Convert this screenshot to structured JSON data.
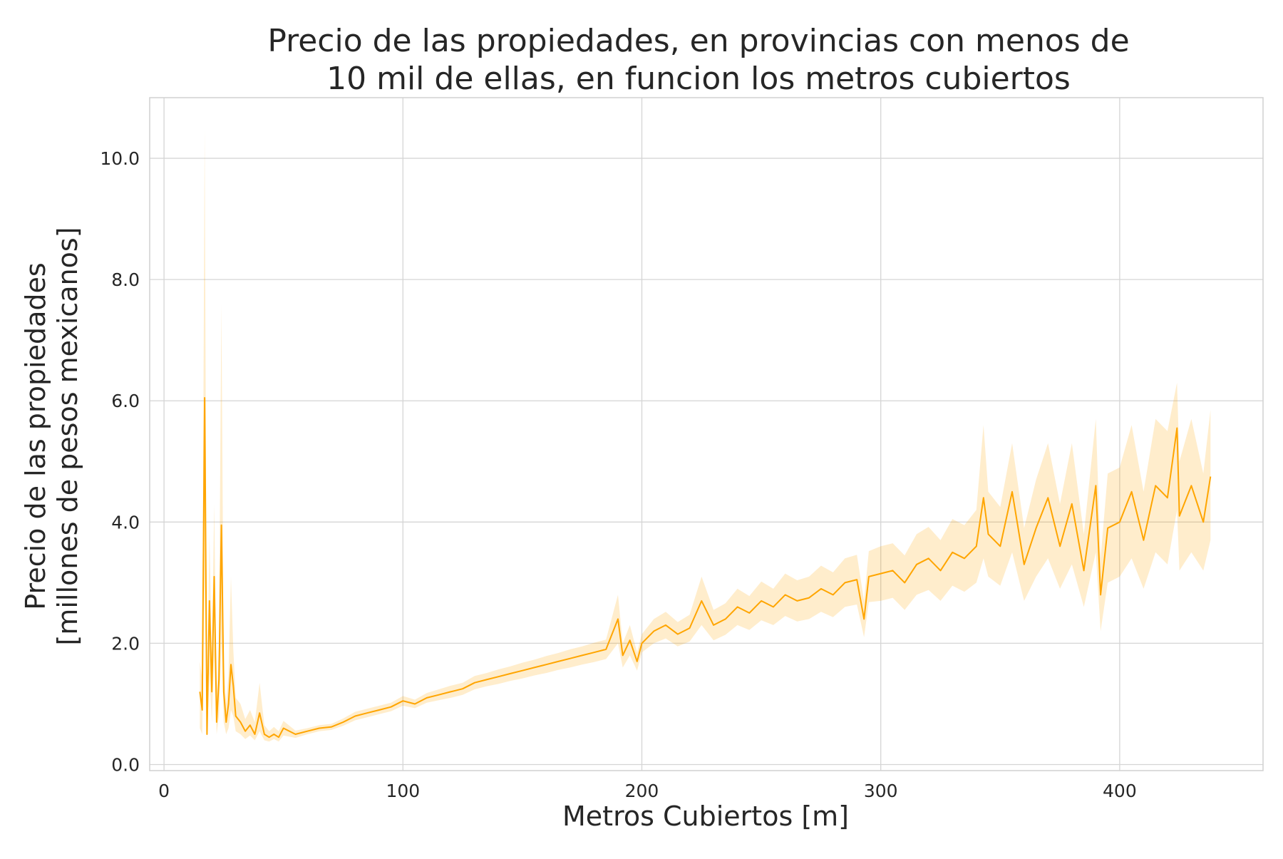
{
  "chart_data": {
    "type": "line",
    "title_lines": [
      "Precio de las propiedades, en provincias con menos de",
      "10 mil de ellas, en funcion los metros cubiertos"
    ],
    "xlabel": "Metros Cubiertos [m]",
    "ylabel_lines": [
      "Precio de las propiedades",
      "[millones de pesos mexicanos]"
    ],
    "xlim": [
      -6,
      460
    ],
    "ylim": [
      -0.1,
      11.0
    ],
    "x_ticks": [
      0,
      100,
      200,
      300,
      400
    ],
    "x_tick_labels": [
      "0",
      "100",
      "200",
      "300",
      "400"
    ],
    "y_ticks": [
      0,
      2,
      4,
      6,
      8,
      10
    ],
    "y_tick_labels": [
      "0.0",
      "2.0",
      "4.0",
      "6.0",
      "8.0",
      "10.0"
    ],
    "grid": true,
    "legend": "none",
    "colors": {
      "line": "#ffa500",
      "band": "#ffa500",
      "grid": "#d5d5d5",
      "frame": "#d0d0d0"
    },
    "series": [
      {
        "x": [
          15,
          16,
          17,
          18,
          19,
          20,
          21,
          22,
          23,
          24,
          25,
          26,
          27,
          28,
          29,
          30,
          32,
          34,
          36,
          38,
          40,
          42,
          44,
          46,
          48,
          50,
          55,
          60,
          65,
          70,
          75,
          80,
          85,
          90,
          95,
          100,
          105,
          110,
          115,
          120,
          125,
          130,
          135,
          140,
          145,
          150,
          155,
          160,
          165,
          170,
          175,
          180,
          185,
          190,
          192,
          195,
          198,
          200,
          205,
          210,
          215,
          220,
          225,
          230,
          235,
          240,
          245,
          250,
          255,
          260,
          265,
          270,
          275,
          280,
          285,
          290,
          293,
          295,
          300,
          305,
          310,
          315,
          320,
          325,
          330,
          335,
          340,
          343,
          345,
          350,
          355,
          360,
          365,
          370,
          375,
          380,
          385,
          390,
          392,
          395,
          400,
          405,
          410,
          415,
          420,
          424,
          425,
          430,
          435,
          438
        ],
        "y": [
          1.2,
          0.9,
          6.05,
          0.5,
          2.7,
          1.2,
          3.1,
          0.7,
          1.4,
          3.95,
          1.2,
          0.7,
          1.0,
          1.65,
          1.3,
          0.8,
          0.7,
          0.55,
          0.65,
          0.5,
          0.85,
          0.5,
          0.45,
          0.5,
          0.45,
          0.6,
          0.5,
          0.55,
          0.6,
          0.62,
          0.7,
          0.8,
          0.85,
          0.9,
          0.95,
          1.05,
          1.0,
          1.1,
          1.15,
          1.2,
          1.25,
          1.35,
          1.4,
          1.45,
          1.5,
          1.55,
          1.6,
          1.65,
          1.7,
          1.75,
          1.8,
          1.85,
          1.9,
          2.4,
          1.8,
          2.05,
          1.7,
          2.0,
          2.2,
          2.3,
          2.15,
          2.25,
          2.7,
          2.3,
          2.4,
          2.6,
          2.5,
          2.7,
          2.6,
          2.8,
          2.7,
          2.75,
          2.9,
          2.8,
          3.0,
          3.05,
          2.4,
          3.1,
          3.15,
          3.2,
          3.0,
          3.3,
          3.4,
          3.2,
          3.5,
          3.4,
          3.6,
          4.4,
          3.8,
          3.6,
          4.5,
          3.3,
          3.9,
          4.4,
          3.6,
          4.3,
          3.2,
          4.6,
          2.8,
          3.9,
          4.0,
          4.5,
          3.7,
          4.6,
          4.4,
          5.55,
          4.1,
          4.6,
          4.0,
          4.75
        ],
        "ci_lower": [
          0.6,
          0.5,
          3.0,
          0.4,
          1.5,
          0.7,
          1.8,
          0.5,
          0.8,
          2.0,
          0.7,
          0.5,
          0.6,
          0.9,
          0.8,
          0.55,
          0.5,
          0.42,
          0.48,
          0.4,
          0.55,
          0.4,
          0.38,
          0.42,
          0.38,
          0.48,
          0.44,
          0.5,
          0.55,
          0.57,
          0.64,
          0.73,
          0.78,
          0.83,
          0.88,
          0.97,
          0.93,
          1.02,
          1.06,
          1.1,
          1.15,
          1.24,
          1.29,
          1.33,
          1.38,
          1.42,
          1.47,
          1.51,
          1.56,
          1.6,
          1.65,
          1.69,
          1.74,
          2.0,
          1.6,
          1.8,
          1.55,
          1.85,
          2.0,
          2.08,
          1.95,
          2.03,
          2.3,
          2.05,
          2.14,
          2.3,
          2.22,
          2.38,
          2.3,
          2.45,
          2.36,
          2.4,
          2.52,
          2.43,
          2.6,
          2.64,
          2.1,
          2.68,
          2.7,
          2.75,
          2.55,
          2.8,
          2.88,
          2.7,
          2.95,
          2.85,
          3.0,
          3.4,
          3.1,
          2.95,
          3.5,
          2.7,
          3.1,
          3.4,
          2.9,
          3.3,
          2.6,
          3.5,
          2.2,
          3.0,
          3.1,
          3.4,
          2.9,
          3.5,
          3.3,
          4.2,
          3.2,
          3.5,
          3.2,
          3.7
        ],
        "ci_upper": [
          1.7,
          1.4,
          10.5,
          0.9,
          3.8,
          1.8,
          4.3,
          1.1,
          2.0,
          7.6,
          1.7,
          1.0,
          1.5,
          3.1,
          1.9,
          1.1,
          1.0,
          0.75,
          0.9,
          0.7,
          1.35,
          0.65,
          0.55,
          0.62,
          0.55,
          0.72,
          0.56,
          0.6,
          0.65,
          0.67,
          0.76,
          0.87,
          0.92,
          0.97,
          1.02,
          1.13,
          1.07,
          1.18,
          1.24,
          1.3,
          1.35,
          1.46,
          1.51,
          1.57,
          1.62,
          1.68,
          1.73,
          1.79,
          1.84,
          1.9,
          1.95,
          2.01,
          2.06,
          2.8,
          2.0,
          2.3,
          1.85,
          2.15,
          2.4,
          2.52,
          2.35,
          2.47,
          3.1,
          2.55,
          2.66,
          2.9,
          2.78,
          3.02,
          2.9,
          3.15,
          3.04,
          3.1,
          3.28,
          3.17,
          3.4,
          3.46,
          2.7,
          3.52,
          3.6,
          3.65,
          3.45,
          3.8,
          3.92,
          3.7,
          4.05,
          3.95,
          4.2,
          5.6,
          4.5,
          4.25,
          5.3,
          3.9,
          4.7,
          5.3,
          4.3,
          5.3,
          3.8,
          5.7,
          3.4,
          4.8,
          4.9,
          5.6,
          4.5,
          5.7,
          5.5,
          6.3,
          5.0,
          5.7,
          4.8,
          5.85
        ]
      }
    ]
  }
}
